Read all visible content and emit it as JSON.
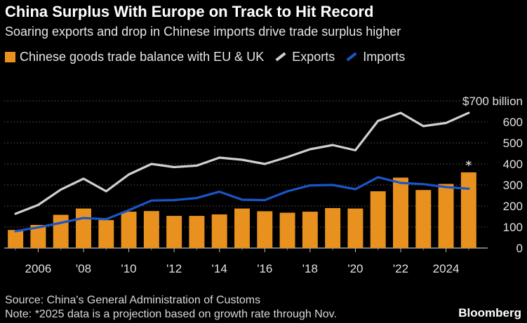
{
  "chart_data": {
    "type": "bar",
    "title": "China Surplus With Europe on Track to Hit Record",
    "subtitle": "Soaring exports and drop in Chinese imports drive trade surplus higher",
    "years": [
      2005,
      2006,
      2007,
      2008,
      2009,
      2010,
      2011,
      2012,
      2013,
      2014,
      2015,
      2016,
      2017,
      2018,
      2019,
      2020,
      2021,
      2022,
      2023,
      2024,
      2025
    ],
    "series": [
      {
        "name": "Chinese goods trade balance with EU & UK",
        "kind": "bar",
        "color": "#e8911f",
        "values": [
          86,
          110,
          158,
          188,
          133,
          173,
          176,
          153,
          153,
          160,
          188,
          175,
          168,
          173,
          190,
          188,
          270,
          335,
          276,
          305,
          360
        ]
      },
      {
        "name": "Exports",
        "kind": "line",
        "color": "#d0d0d0",
        "values": [
          163,
          205,
          278,
          330,
          270,
          350,
          400,
          385,
          392,
          430,
          420,
          400,
          433,
          470,
          490,
          465,
          605,
          643,
          580,
          595,
          643
        ]
      },
      {
        "name": "Imports",
        "kind": "line",
        "color": "#1a56c8",
        "values": [
          80,
          98,
          120,
          143,
          137,
          180,
          226,
          228,
          238,
          268,
          230,
          228,
          270,
          298,
          300,
          280,
          337,
          310,
          304,
          290,
          282
        ]
      }
    ],
    "xticks": [
      "2006",
      "'08",
      "'10",
      "'12",
      "'14",
      "'16",
      "'18",
      "'20",
      "'22",
      "2024"
    ],
    "xtick_years": [
      2006,
      2008,
      2010,
      2012,
      2014,
      2016,
      2018,
      2020,
      2022,
      2024
    ],
    "yticks": [
      0,
      100,
      200,
      300,
      400,
      500,
      600,
      700
    ],
    "ytick_labels": [
      "0",
      "100",
      "200",
      "300",
      "400",
      "500",
      "600",
      "$700 billion"
    ],
    "ylim": [
      0,
      700
    ],
    "annotation": {
      "year": 2025,
      "text": "*"
    }
  },
  "legend": {
    "bar_label": "Chinese goods trade balance with EU & UK",
    "exports_label": "Exports",
    "imports_label": "Imports"
  },
  "footer": {
    "source": "Source: China's General Administration of Customs",
    "note": "Note: *2025 data is a projection based on growth rate through Nov.",
    "brand": "Bloomberg"
  },
  "colors": {
    "background": "#000000",
    "bar": "#e8911f",
    "exports": "#d0d0d0",
    "imports": "#1a56c8",
    "grid": "#5a5a5a"
  }
}
